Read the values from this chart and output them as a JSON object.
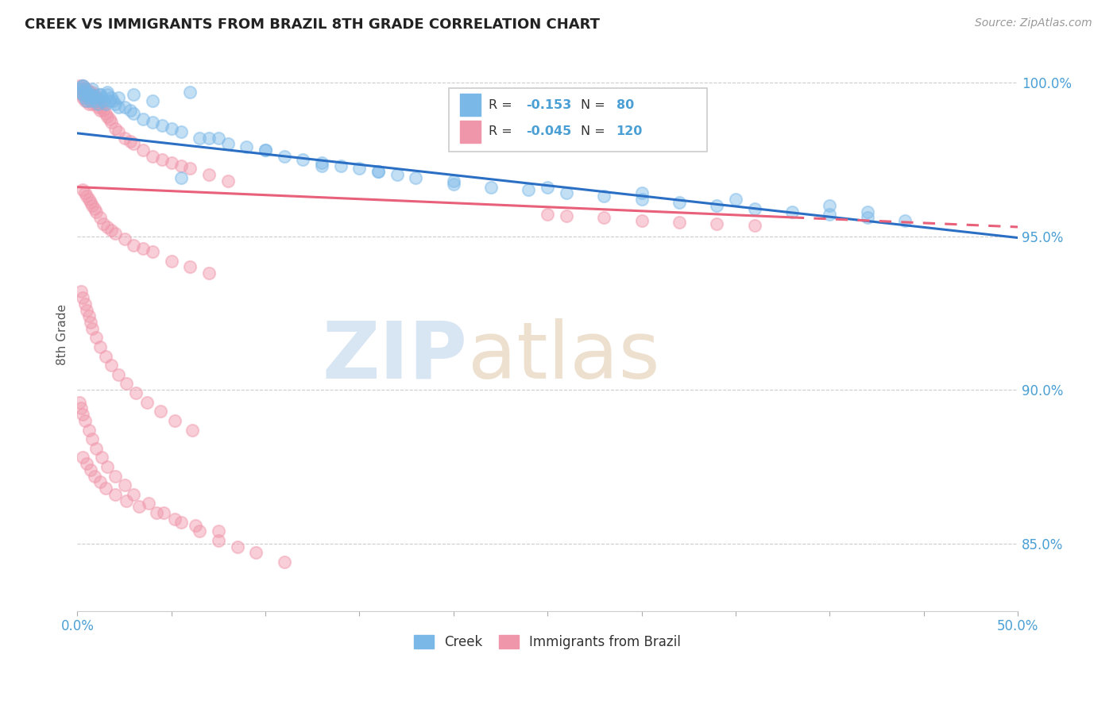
{
  "title": "CREEK VS IMMIGRANTS FROM BRAZIL 8TH GRADE CORRELATION CHART",
  "source": "Source: ZipAtlas.com",
  "ylabel": "8th Grade",
  "ytick_labels": [
    "85.0%",
    "90.0%",
    "95.0%",
    "100.0%"
  ],
  "ytick_values": [
    0.85,
    0.9,
    0.95,
    1.0
  ],
  "xlim": [
    0.0,
    0.5
  ],
  "ylim": [
    0.828,
    1.008
  ],
  "legend_creek_r": "-0.153",
  "legend_creek_n": "80",
  "legend_brazil_r": "-0.045",
  "legend_brazil_n": "120",
  "creek_color": "#7ab8e8",
  "brazil_color": "#f096aa",
  "creek_line_color": "#2a6fc4",
  "brazil_line_color": "#e8607a",
  "creek_trend": [
    0.9835,
    0.9495
  ],
  "brazil_trend": [
    0.966,
    0.953
  ],
  "brazil_trend_solid_end": 0.38,
  "creek_dots_x": [
    0.001,
    0.002,
    0.003,
    0.003,
    0.004,
    0.004,
    0.005,
    0.005,
    0.006,
    0.006,
    0.007,
    0.007,
    0.008,
    0.009,
    0.01,
    0.011,
    0.012,
    0.013,
    0.014,
    0.015,
    0.016,
    0.017,
    0.018,
    0.019,
    0.02,
    0.022,
    0.025,
    0.028,
    0.03,
    0.035,
    0.04,
    0.045,
    0.05,
    0.055,
    0.06,
    0.065,
    0.07,
    0.08,
    0.09,
    0.1,
    0.11,
    0.12,
    0.13,
    0.14,
    0.15,
    0.16,
    0.17,
    0.18,
    0.2,
    0.22,
    0.24,
    0.26,
    0.28,
    0.3,
    0.32,
    0.34,
    0.36,
    0.38,
    0.4,
    0.42,
    0.003,
    0.005,
    0.008,
    0.012,
    0.016,
    0.022,
    0.03,
    0.04,
    0.055,
    0.075,
    0.1,
    0.13,
    0.16,
    0.2,
    0.25,
    0.3,
    0.35,
    0.4,
    0.42,
    0.44
  ],
  "creek_dots_y": [
    0.998,
    0.997,
    0.999,
    0.996,
    0.998,
    0.995,
    0.997,
    0.994,
    0.996,
    0.996,
    0.995,
    0.994,
    0.996,
    0.995,
    0.994,
    0.993,
    0.996,
    0.995,
    0.994,
    0.993,
    0.996,
    0.994,
    0.995,
    0.994,
    0.993,
    0.992,
    0.992,
    0.991,
    0.99,
    0.988,
    0.987,
    0.986,
    0.985,
    0.984,
    0.997,
    0.982,
    0.982,
    0.98,
    0.979,
    0.978,
    0.976,
    0.975,
    0.974,
    0.973,
    0.972,
    0.971,
    0.97,
    0.969,
    0.967,
    0.966,
    0.965,
    0.964,
    0.963,
    0.962,
    0.961,
    0.96,
    0.959,
    0.958,
    0.957,
    0.956,
    0.999,
    0.996,
    0.998,
    0.996,
    0.997,
    0.995,
    0.996,
    0.994,
    0.969,
    0.982,
    0.978,
    0.973,
    0.971,
    0.968,
    0.966,
    0.964,
    0.962,
    0.96,
    0.958,
    0.955
  ],
  "brazil_dots_x": [
    0.001,
    0.001,
    0.002,
    0.002,
    0.003,
    0.003,
    0.003,
    0.004,
    0.004,
    0.004,
    0.005,
    0.005,
    0.005,
    0.006,
    0.006,
    0.006,
    0.007,
    0.007,
    0.008,
    0.008,
    0.008,
    0.009,
    0.009,
    0.01,
    0.01,
    0.011,
    0.011,
    0.012,
    0.012,
    0.013,
    0.014,
    0.015,
    0.016,
    0.017,
    0.018,
    0.02,
    0.022,
    0.025,
    0.028,
    0.03,
    0.035,
    0.04,
    0.045,
    0.05,
    0.055,
    0.06,
    0.07,
    0.08,
    0.003,
    0.004,
    0.005,
    0.006,
    0.007,
    0.008,
    0.009,
    0.01,
    0.012,
    0.014,
    0.016,
    0.018,
    0.02,
    0.025,
    0.03,
    0.035,
    0.04,
    0.05,
    0.06,
    0.07,
    0.002,
    0.003,
    0.004,
    0.005,
    0.006,
    0.007,
    0.008,
    0.01,
    0.012,
    0.015,
    0.018,
    0.022,
    0.026,
    0.031,
    0.037,
    0.044,
    0.052,
    0.061,
    0.001,
    0.002,
    0.003,
    0.004,
    0.006,
    0.008,
    0.01,
    0.013,
    0.016,
    0.02,
    0.025,
    0.03,
    0.038,
    0.046,
    0.055,
    0.065,
    0.075,
    0.085,
    0.095,
    0.11,
    0.003,
    0.005,
    0.007,
    0.009,
    0.012,
    0.015,
    0.02,
    0.026,
    0.033,
    0.042,
    0.052,
    0.063,
    0.075,
    0.25,
    0.3,
    0.28,
    0.32,
    0.26,
    0.34,
    0.36
  ],
  "brazil_dots_y": [
    0.999,
    0.997,
    0.998,
    0.996,
    0.999,
    0.997,
    0.995,
    0.998,
    0.996,
    0.994,
    0.998,
    0.996,
    0.994,
    0.997,
    0.995,
    0.993,
    0.996,
    0.994,
    0.997,
    0.995,
    0.993,
    0.996,
    0.994,
    0.995,
    0.993,
    0.994,
    0.992,
    0.993,
    0.991,
    0.992,
    0.991,
    0.99,
    0.989,
    0.988,
    0.987,
    0.985,
    0.984,
    0.982,
    0.981,
    0.98,
    0.978,
    0.976,
    0.975,
    0.974,
    0.973,
    0.972,
    0.97,
    0.968,
    0.965,
    0.964,
    0.963,
    0.962,
    0.961,
    0.96,
    0.959,
    0.958,
    0.956,
    0.954,
    0.953,
    0.952,
    0.951,
    0.949,
    0.947,
    0.946,
    0.945,
    0.942,
    0.94,
    0.938,
    0.932,
    0.93,
    0.928,
    0.926,
    0.924,
    0.922,
    0.92,
    0.917,
    0.914,
    0.911,
    0.908,
    0.905,
    0.902,
    0.899,
    0.896,
    0.893,
    0.89,
    0.887,
    0.896,
    0.894,
    0.892,
    0.89,
    0.887,
    0.884,
    0.881,
    0.878,
    0.875,
    0.872,
    0.869,
    0.866,
    0.863,
    0.86,
    0.857,
    0.854,
    0.851,
    0.849,
    0.847,
    0.844,
    0.878,
    0.876,
    0.874,
    0.872,
    0.87,
    0.868,
    0.866,
    0.864,
    0.862,
    0.86,
    0.858,
    0.856,
    0.854,
    0.957,
    0.955,
    0.956,
    0.9545,
    0.9565,
    0.954,
    0.9535
  ]
}
